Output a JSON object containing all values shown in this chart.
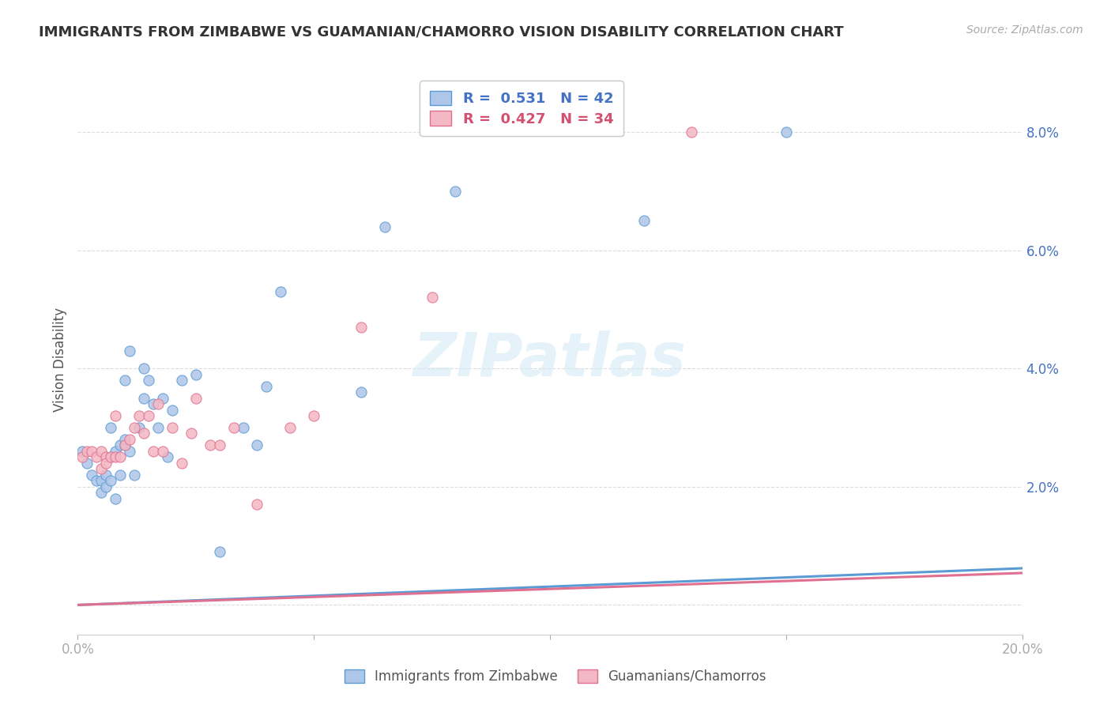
{
  "title": "IMMIGRANTS FROM ZIMBABWE VS GUAMANIAN/CHAMORRO VISION DISABILITY CORRELATION CHART",
  "source": "Source: ZipAtlas.com",
  "ylabel": "Vision Disability",
  "xlim": [
    0.0,
    0.2
  ],
  "ylim": [
    -0.005,
    0.088
  ],
  "yticks": [
    0.0,
    0.02,
    0.04,
    0.06,
    0.08
  ],
  "ytick_labels": [
    "",
    "2.0%",
    "4.0%",
    "6.0%",
    "8.0%"
  ],
  "legend_blue_r": "0.531",
  "legend_blue_n": "42",
  "legend_pink_r": "0.427",
  "legend_pink_n": "34",
  "legend_label_blue": "Immigrants from Zimbabwe",
  "legend_label_pink": "Guamanians/Chamorros",
  "blue_scatter_x": [
    0.001,
    0.002,
    0.003,
    0.004,
    0.005,
    0.005,
    0.006,
    0.006,
    0.007,
    0.007,
    0.007,
    0.008,
    0.008,
    0.009,
    0.009,
    0.01,
    0.01,
    0.01,
    0.011,
    0.011,
    0.012,
    0.013,
    0.014,
    0.014,
    0.015,
    0.016,
    0.017,
    0.018,
    0.019,
    0.02,
    0.022,
    0.025,
    0.03,
    0.035,
    0.038,
    0.04,
    0.043,
    0.06,
    0.065,
    0.08,
    0.12,
    0.15
  ],
  "blue_scatter_y": [
    0.026,
    0.024,
    0.022,
    0.021,
    0.019,
    0.021,
    0.02,
    0.022,
    0.021,
    0.025,
    0.03,
    0.018,
    0.026,
    0.022,
    0.027,
    0.027,
    0.028,
    0.038,
    0.026,
    0.043,
    0.022,
    0.03,
    0.04,
    0.035,
    0.038,
    0.034,
    0.03,
    0.035,
    0.025,
    0.033,
    0.038,
    0.039,
    0.009,
    0.03,
    0.027,
    0.037,
    0.053,
    0.036,
    0.064,
    0.07,
    0.065,
    0.08
  ],
  "pink_scatter_x": [
    0.001,
    0.002,
    0.003,
    0.004,
    0.005,
    0.005,
    0.006,
    0.006,
    0.007,
    0.008,
    0.008,
    0.009,
    0.01,
    0.011,
    0.012,
    0.013,
    0.014,
    0.015,
    0.016,
    0.017,
    0.018,
    0.02,
    0.022,
    0.024,
    0.025,
    0.028,
    0.03,
    0.033,
    0.038,
    0.045,
    0.05,
    0.06,
    0.075,
    0.13
  ],
  "pink_scatter_y": [
    0.025,
    0.026,
    0.026,
    0.025,
    0.023,
    0.026,
    0.025,
    0.024,
    0.025,
    0.025,
    0.032,
    0.025,
    0.027,
    0.028,
    0.03,
    0.032,
    0.029,
    0.032,
    0.026,
    0.034,
    0.026,
    0.03,
    0.024,
    0.029,
    0.035,
    0.027,
    0.027,
    0.03,
    0.017,
    0.03,
    0.032,
    0.047,
    0.052,
    0.08
  ],
  "blue_color": "#aec6e8",
  "pink_color": "#f4b8c4",
  "blue_line_color": "#5b9bd5",
  "pink_line_color": "#e07090",
  "blue_text_color": "#4472c4",
  "pink_text_color": "#d45070",
  "watermark": "ZIPatlas",
  "background_color": "#ffffff",
  "grid_color": "#dddddd",
  "blue_line_slope": 0.031,
  "blue_line_intercept": 0.0,
  "pink_line_slope": 0.027,
  "pink_line_intercept": 0.0
}
